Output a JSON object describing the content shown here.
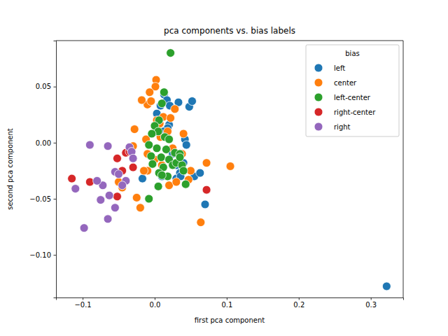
{
  "chart_data": {
    "type": "scatter",
    "title": "pca components vs. bias labels",
    "x_label": "first pca component",
    "y_label": "second pca component",
    "legend_title": "bias",
    "legend": "upper right",
    "grid": false,
    "xlim": [
      -0.137,
      0.345
    ],
    "ylim": [
      -0.138,
      0.091
    ],
    "xticks": [
      {
        "value": -0.1,
        "label": "−0.1"
      },
      {
        "value": 0.0,
        "label": "0.0"
      },
      {
        "value": 0.1,
        "label": "0.1"
      },
      {
        "value": 0.2,
        "label": "0.2"
      },
      {
        "value": 0.3,
        "label": "0.3"
      }
    ],
    "yticks": [
      {
        "value": -0.1,
        "label": "−0.10"
      },
      {
        "value": -0.05,
        "label": "−0.05"
      },
      {
        "value": 0.0,
        "label": "0.00"
      },
      {
        "value": 0.05,
        "label": "0.05"
      }
    ],
    "series": [
      {
        "name": "left",
        "color": "#1f77b4",
        "x": [
          0.322,
          0.013,
          0.017,
          0.021,
          0.033,
          0.048,
          0.052,
          0.003,
          0.008,
          0.02,
          0.018,
          0.012,
          0.042,
          0.044,
          0.005,
          0.02,
          0.03,
          0.035,
          0.04,
          0.055,
          0.063,
          0.07,
          -0.017,
          0.01,
          0.03,
          0.036,
          0.015,
          0.025
        ],
        "values": [
          -0.128,
          0.043,
          0.038,
          0.033,
          0.036,
          0.032,
          0.037,
          0.026,
          0.033,
          0.016,
          0.013,
          0.01,
          0.003,
          -0.002,
          0.009,
          -0.015,
          -0.02,
          -0.027,
          -0.018,
          -0.03,
          -0.027,
          -0.055,
          -0.032,
          -0.03,
          -0.032,
          -0.03,
          0.005,
          -0.01
        ]
      },
      {
        "name": "center",
        "color": "#ff7f0e",
        "x": [
          0.002,
          0.001,
          -0.007,
          -0.01,
          -0.005,
          -0.018,
          0.003,
          0.007,
          0.012,
          0.022,
          0.018,
          0.04,
          -0.028,
          -0.012,
          0.008,
          0.025,
          0.038,
          -0.03,
          -0.01,
          0.0,
          0.01,
          -0.01,
          -0.015,
          0.02,
          0.047,
          0.072,
          0.105,
          0.064,
          -0.02,
          -0.025,
          -0.045,
          -0.05,
          0.03,
          0.05,
          0.028
        ],
        "values": [
          0.056,
          0.05,
          0.045,
          0.034,
          0.037,
          0.038,
          0.02,
          0.017,
          0.023,
          0.022,
          0.01,
          0.008,
          0.012,
          0.003,
          0.005,
          -0.005,
          -0.01,
          -0.003,
          -0.01,
          -0.015,
          -0.02,
          -0.025,
          -0.025,
          -0.038,
          -0.033,
          -0.018,
          -0.021,
          -0.071,
          -0.058,
          -0.049,
          -0.04,
          -0.035,
          -0.035,
          -0.025,
          0.03
        ]
      },
      {
        "name": "left-center",
        "color": "#2ca02c",
        "x": [
          0.022,
          0.013,
          0.01,
          0.006,
          0.0,
          0.005,
          -0.004,
          0.014,
          0.02,
          -0.008,
          0.003,
          0.016,
          0.028,
          0.035,
          -0.005,
          0.009,
          0.02,
          0.025,
          -0.003,
          0.03,
          0.038,
          0.012,
          0.006,
          0.018,
          0.04,
          0.043,
          0.005,
          0.01,
          -0.008,
          0.035
        ],
        "values": [
          0.08,
          0.045,
          0.035,
          0.02,
          0.015,
          0.01,
          0.008,
          0.005,
          0.003,
          -0.002,
          -0.005,
          -0.006,
          -0.009,
          -0.01,
          -0.012,
          -0.013,
          -0.015,
          -0.02,
          -0.019,
          -0.018,
          -0.02,
          -0.022,
          -0.027,
          -0.03,
          -0.025,
          -0.037,
          -0.039,
          -0.029,
          -0.05,
          -0.013
        ]
      },
      {
        "name": "right-center",
        "color": "#d62728",
        "x": [
          -0.115,
          -0.09,
          -0.052,
          -0.052,
          -0.04,
          -0.03,
          -0.045,
          0.072,
          -0.035
        ],
        "values": [
          -0.032,
          -0.035,
          -0.048,
          -0.014,
          -0.009,
          -0.022,
          -0.025,
          -0.042,
          -0.008
        ]
      },
      {
        "name": "right",
        "color": "#9467bd",
        "x": [
          -0.11,
          -0.098,
          -0.09,
          -0.065,
          -0.072,
          -0.075,
          -0.065,
          -0.055,
          -0.063,
          -0.055,
          -0.05,
          -0.04,
          -0.045,
          -0.035,
          -0.032,
          -0.03,
          -0.08
        ],
        "values": [
          -0.041,
          -0.076,
          -0.002,
          -0.003,
          -0.038,
          -0.051,
          -0.068,
          -0.058,
          -0.047,
          -0.026,
          -0.028,
          -0.034,
          -0.038,
          -0.004,
          -0.008,
          -0.014,
          -0.034
        ]
      }
    ]
  }
}
